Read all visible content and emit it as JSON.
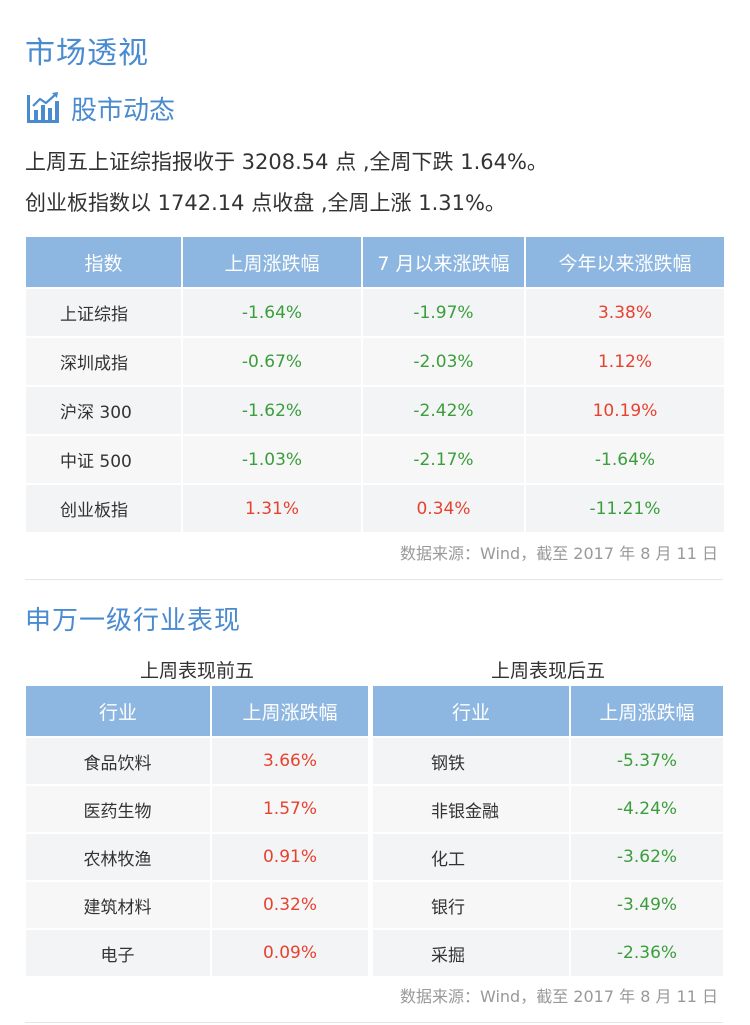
{
  "page_title": "市场透视",
  "stock_section": {
    "icon": "bar-chart-trend-icon",
    "title": "股市动态",
    "summary_line1": "上周五上证综指报收于 3208.54 点 ,全周下跌 1.64%。",
    "summary_line2": "创业板指数以 1742.14 点收盘 ,全周上涨 1.31%。"
  },
  "index_table": {
    "headers": [
      "指数",
      "上周涨跌幅",
      "7 月以来涨跌幅",
      "今年以来涨跌幅"
    ],
    "rows": [
      {
        "name": "上证综指",
        "week": "-1.64%",
        "july": "-1.97%",
        "ytd": "3.38%"
      },
      {
        "name": "深圳成指",
        "week": "-0.67%",
        "july": "-2.03%",
        "ytd": "1.12%"
      },
      {
        "name": "沪深 300",
        "week": "-1.62%",
        "july": "-2.42%",
        "ytd": "10.19%"
      },
      {
        "name": "中证 500",
        "week": "-1.03%",
        "july": "-2.17%",
        "ytd": "-1.64%"
      },
      {
        "name": "创业板指",
        "week": "1.31%",
        "july": "0.34%",
        "ytd": "-11.21%"
      }
    ],
    "source": "数据来源：Wind，截至 2017 年 8 月 11 日"
  },
  "industry_section": {
    "title": "申万一级行业表现",
    "top": {
      "caption": "上周表现前五",
      "headers": [
        "行业",
        "上周涨跌幅"
      ],
      "rows": [
        {
          "name": "食品饮料",
          "change": "3.66%"
        },
        {
          "name": "医药生物",
          "change": "1.57%"
        },
        {
          "name": "农林牧渔",
          "change": "0.91%"
        },
        {
          "name": "建筑材料",
          "change": "0.32%"
        },
        {
          "name": "电子",
          "change": "0.09%"
        }
      ]
    },
    "bottom": {
      "caption": "上周表现后五",
      "headers": [
        "行业",
        "上周涨跌幅"
      ],
      "rows": [
        {
          "name": "钢铁",
          "change": "-5.37%"
        },
        {
          "name": "非银金融",
          "change": "-4.24%"
        },
        {
          "name": "化工",
          "change": "-3.62%"
        },
        {
          "name": "银行",
          "change": "-3.49%"
        },
        {
          "name": "采掘",
          "change": "-2.36%"
        }
      ]
    },
    "source": "数据来源：Wind，截至 2017 年 8 月 11 日"
  },
  "colors": {
    "accent": "#4a8bd0",
    "header_bg": "#8db6e1",
    "up": "#e8422f",
    "down": "#3a9e3a"
  }
}
